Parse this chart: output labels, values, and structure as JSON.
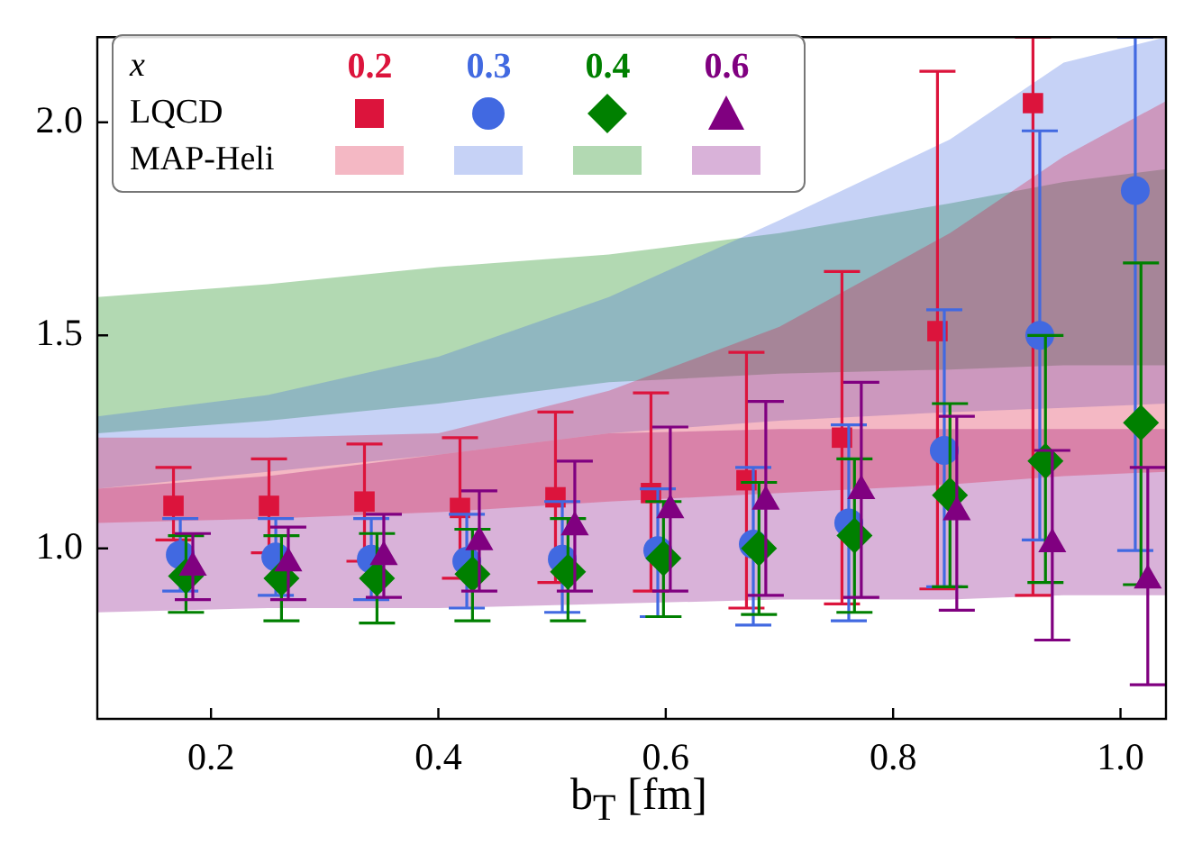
{
  "chart_data": {
    "type": "scatter",
    "xlabel": "b$_{T}$ [fm]",
    "legend_title": "x",
    "annotations": [
      "LQCD",
      "MAP-Heli"
    ],
    "legend": "top left",
    "xlim": [
      0.1,
      1.04
    ],
    "ylim": [
      0.6,
      2.2
    ],
    "xticks": [
      0.2,
      0.4,
      0.6,
      0.8,
      {
        "value": 1,
        "label": "1.0"
      }
    ],
    "yticks": [
      {
        "value": 1,
        "label": "1.0"
      },
      1.5,
      {
        "value": 2,
        "label": "2.0"
      }
    ],
    "series": [
      {
        "name": "0.2",
        "type": "scatter",
        "marker": "square",
        "color": "#dc143c",
        "x": [
          0.167,
          0.251,
          0.335,
          0.419,
          0.503,
          0.587,
          0.671,
          0.755,
          0.839,
          0.923
        ],
        "values": [
          1.1,
          1.1,
          1.11,
          1.095,
          1.12,
          1.13,
          1.16,
          1.26,
          1.51,
          2.045
        ],
        "errors": [
          [
            1.02,
            1.19
          ],
          [
            0.99,
            1.21
          ],
          [
            0.97,
            1.245
          ],
          [
            0.93,
            1.26
          ],
          [
            0.92,
            1.32
          ],
          [
            0.9,
            1.365
          ],
          [
            0.86,
            1.46
          ],
          [
            0.87,
            1.65
          ],
          [
            0.905,
            2.12
          ],
          [
            0.89,
            2.2
          ]
        ]
      },
      {
        "name": "0.3",
        "type": "scatter",
        "marker": "circle",
        "color": "#4169e1",
        "x": [
          0.173,
          0.257,
          0.341,
          0.425,
          0.509,
          0.593,
          0.677,
          0.761,
          0.845,
          0.929,
          1.013
        ],
        "values": [
          0.985,
          0.98,
          0.975,
          0.97,
          0.975,
          0.995,
          1.01,
          1.06,
          1.23,
          1.5,
          1.84
        ],
        "errors": [
          [
            0.9,
            1.07
          ],
          [
            0.89,
            1.07
          ],
          [
            0.88,
            1.07
          ],
          [
            0.86,
            1.08
          ],
          [
            0.85,
            1.11
          ],
          [
            0.84,
            1.14
          ],
          [
            0.82,
            1.19
          ],
          [
            0.83,
            1.29
          ],
          [
            0.91,
            1.56
          ],
          [
            1.02,
            1.98
          ],
          [
            0.995,
            2.2
          ]
        ]
      },
      {
        "name": "0.4",
        "type": "scatter",
        "marker": "diamond",
        "color": "#008000",
        "x": [
          0.178,
          0.262,
          0.346,
          0.43,
          0.514,
          0.598,
          0.682,
          0.766,
          0.85,
          0.934,
          1.018
        ],
        "values": [
          0.935,
          0.93,
          0.93,
          0.94,
          0.945,
          0.977,
          1.0,
          1.03,
          1.125,
          1.205,
          1.295
        ],
        "errors": [
          [
            0.85,
            1.03
          ],
          [
            0.83,
            1.03
          ],
          [
            0.825,
            1.035
          ],
          [
            0.83,
            1.045
          ],
          [
            0.83,
            1.07
          ],
          [
            0.84,
            1.11
          ],
          [
            0.845,
            1.155
          ],
          [
            0.85,
            1.21
          ],
          [
            0.91,
            1.34
          ],
          [
            0.92,
            1.5
          ],
          [
            0.915,
            1.67
          ]
        ]
      },
      {
        "name": "0.6",
        "type": "scatter",
        "marker": "triangle",
        "color": "#800080",
        "x": [
          0.184,
          0.268,
          0.352,
          0.436,
          0.52,
          0.604,
          0.688,
          0.772,
          0.856,
          0.94,
          1.024
        ],
        "values": [
          0.955,
          0.965,
          0.98,
          1.015,
          1.05,
          1.09,
          1.11,
          1.135,
          1.085,
          1.01,
          0.925
        ],
        "errors": [
          [
            0.88,
            1.035
          ],
          [
            0.88,
            1.05
          ],
          [
            0.885,
            1.08
          ],
          [
            0.9,
            1.135
          ],
          [
            0.9,
            1.205
          ],
          [
            0.9,
            1.285
          ],
          [
            0.89,
            1.345
          ],
          [
            0.885,
            1.39
          ],
          [
            0.855,
            1.31
          ],
          [
            0.785,
            1.23
          ],
          [
            0.68,
            1.19
          ]
        ]
      },
      {
        "type": "area",
        "color": "#dc143c",
        "x": [
          0.1,
          0.25,
          0.4,
          0.55,
          0.7,
          0.85,
          0.95,
          1.04
        ],
        "values": [
          null,
          null,
          null,
          null,
          null,
          null,
          null,
          null
        ],
        "lower": [
          1.06,
          1.07,
          1.085,
          1.11,
          1.13,
          1.15,
          1.17,
          1.18
        ],
        "upper": [
          1.26,
          1.26,
          1.27,
          1.37,
          1.52,
          1.74,
          1.92,
          2.05
        ]
      },
      {
        "type": "area",
        "color": "#4169e1",
        "x": [
          0.1,
          0.25,
          0.4,
          0.55,
          0.7,
          0.85,
          0.95,
          1.04
        ],
        "values": [
          null,
          null,
          null,
          null,
          null,
          null,
          null,
          null
        ],
        "lower": [
          1.14,
          1.18,
          1.22,
          1.27,
          1.3,
          1.32,
          1.33,
          1.34
        ],
        "upper": [
          1.31,
          1.36,
          1.45,
          1.59,
          1.77,
          1.96,
          2.14,
          2.2
        ]
      },
      {
        "type": "area",
        "color": "#008000",
        "x": [
          0.1,
          0.25,
          0.4,
          0.55,
          0.7,
          0.85,
          0.95,
          1.04
        ],
        "values": [
          null,
          null,
          null,
          null,
          null,
          null,
          null,
          null
        ],
        "lower": [
          1.27,
          1.3,
          1.34,
          1.39,
          1.41,
          1.42,
          1.43,
          1.43
        ],
        "upper": [
          1.59,
          1.62,
          1.66,
          1.69,
          1.74,
          1.81,
          1.86,
          1.89
        ]
      },
      {
        "type": "area",
        "color": "#800080",
        "x": [
          0.1,
          0.25,
          0.4,
          0.55,
          0.7,
          0.85,
          0.95,
          1.04
        ],
        "values": [
          null,
          null,
          null,
          null,
          null,
          null,
          null,
          null
        ],
        "lower": [
          0.85,
          0.86,
          0.86,
          0.87,
          0.88,
          0.88,
          0.89,
          0.89
        ],
        "upper": [
          1.14,
          1.17,
          1.22,
          1.27,
          1.28,
          1.28,
          1.28,
          1.28
        ]
      }
    ]
  }
}
